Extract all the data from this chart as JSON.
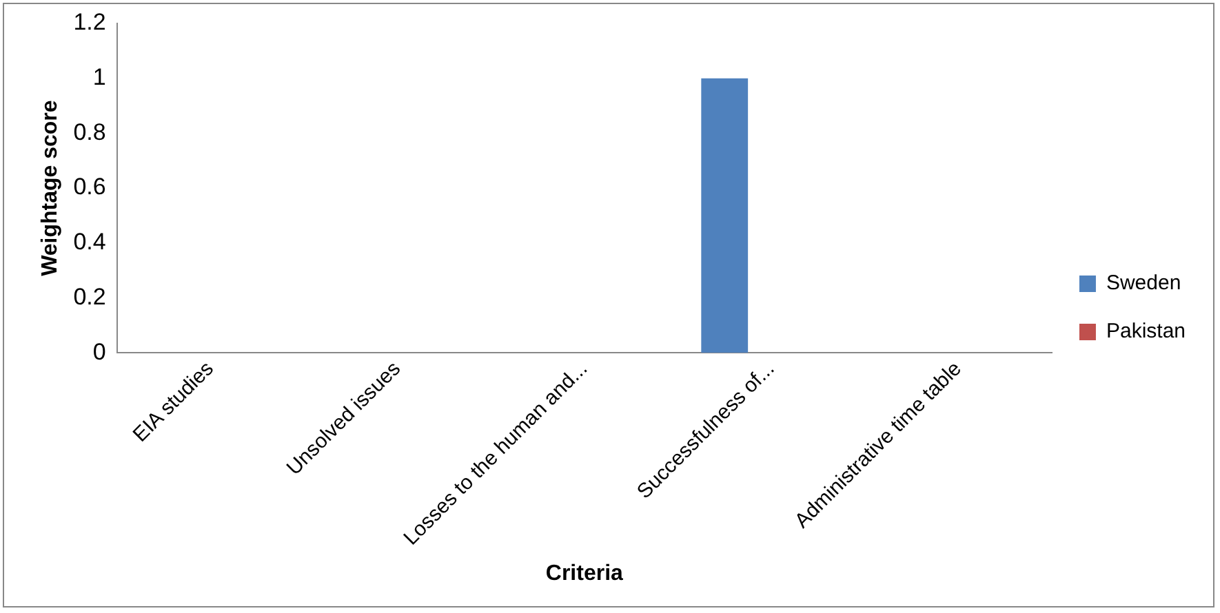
{
  "chart_data": {
    "type": "bar",
    "xlabel": "Criteria",
    "ylabel": "Weightage score",
    "categories": [
      "EIA studies",
      "Unsolved issues",
      "Losses to the human and...",
      "Successfulness of...",
      "Administrative time table"
    ],
    "series": [
      {
        "name": "Sweden",
        "color": "#4f81bd",
        "values": [
          0,
          0,
          0,
          1,
          0
        ]
      },
      {
        "name": "Pakistan",
        "color": "#c0504d",
        "values": [
          0,
          0,
          0,
          0,
          0
        ]
      }
    ],
    "ylim": [
      0,
      1.2
    ],
    "yticks": [
      0,
      0.2,
      0.4,
      0.6,
      0.8,
      1,
      1.2
    ],
    "grid": false,
    "legend": "right"
  }
}
